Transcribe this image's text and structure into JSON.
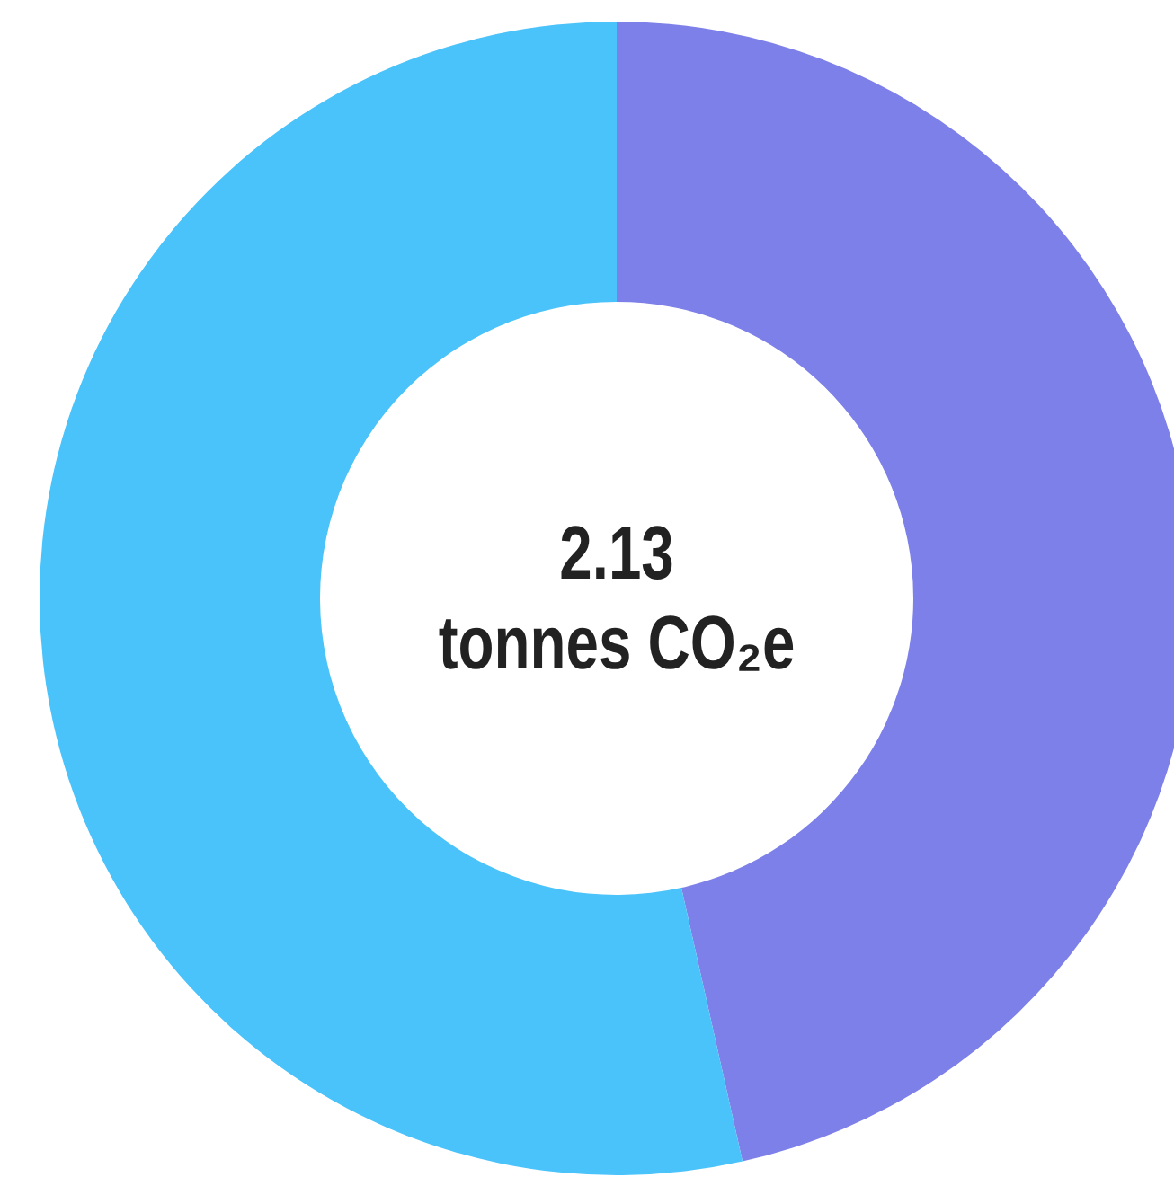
{
  "chart_data": {
    "type": "donut",
    "categories": [
      null,
      null
    ],
    "values": [
      46.5,
      53.5
    ],
    "colors": [
      "#7d80e8",
      "#4ac2fa"
    ],
    "annotations": [
      "2.13",
      "tonnes CO₂e"
    ]
  }
}
